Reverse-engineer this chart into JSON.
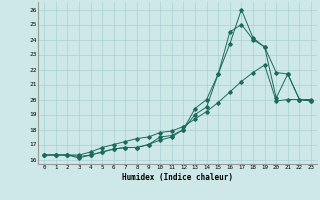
{
  "xlabel": "Humidex (Indice chaleur)",
  "ylabel": "",
  "background_color": "#cee8e8",
  "grid_color": "#aad0d0",
  "line_color": "#1a6b5a",
  "x": [
    0,
    1,
    2,
    3,
    4,
    5,
    6,
    7,
    8,
    9,
    10,
    11,
    12,
    13,
    14,
    15,
    16,
    17,
    18,
    19,
    20,
    21,
    22,
    23
  ],
  "line1": [
    16.3,
    16.3,
    16.3,
    16.2,
    16.3,
    16.5,
    16.7,
    16.8,
    16.8,
    17.0,
    17.3,
    17.5,
    18.0,
    19.0,
    19.5,
    21.7,
    23.7,
    26.0,
    24.1,
    23.5,
    20.1,
    21.7,
    20.0,
    19.9
  ],
  "line2": [
    16.3,
    16.3,
    16.3,
    16.1,
    16.3,
    16.5,
    16.7,
    16.8,
    16.8,
    17.0,
    17.5,
    17.6,
    18.0,
    19.4,
    20.0,
    21.7,
    24.5,
    25.0,
    24.0,
    23.5,
    21.8,
    21.7,
    20.0,
    19.9
  ],
  "line3": [
    16.3,
    16.3,
    16.3,
    16.3,
    16.5,
    16.8,
    17.0,
    17.2,
    17.4,
    17.5,
    17.8,
    17.9,
    18.2,
    18.7,
    19.2,
    19.8,
    20.5,
    21.2,
    21.8,
    22.3,
    19.9,
    20.0,
    20.0,
    20.0
  ],
  "xlim": [
    -0.5,
    23.5
  ],
  "ylim": [
    15.7,
    26.5
  ],
  "yticks": [
    16,
    17,
    18,
    19,
    20,
    21,
    22,
    23,
    24,
    25,
    26
  ],
  "xticks": [
    0,
    1,
    2,
    3,
    4,
    5,
    6,
    7,
    8,
    9,
    10,
    11,
    12,
    13,
    14,
    15,
    16,
    17,
    18,
    19,
    20,
    21,
    22,
    23
  ]
}
